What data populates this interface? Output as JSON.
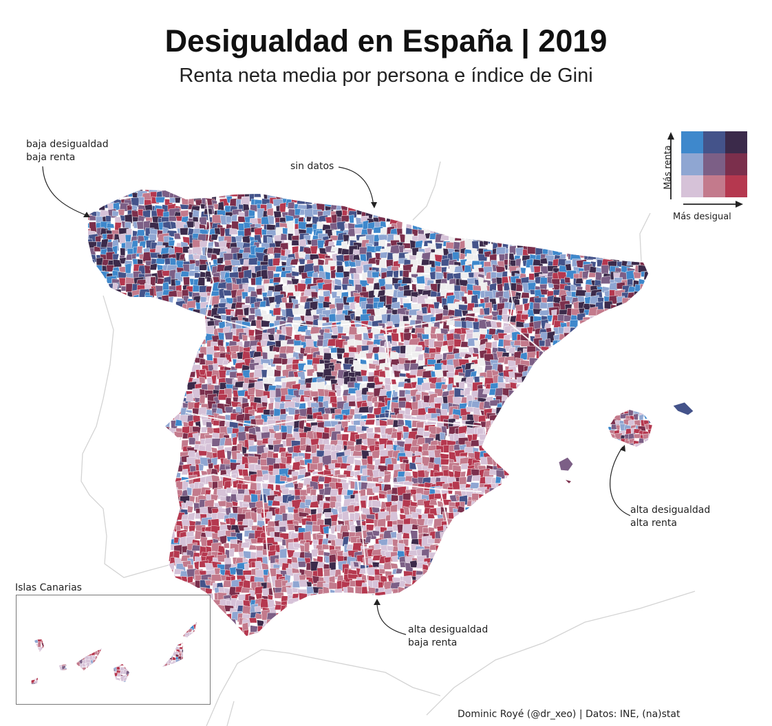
{
  "title": "Desigualdad en España | 2019",
  "subtitle": "Renta neta media por persona e índice de Gini",
  "annotations": {
    "top_left": [
      "baja desigualdad",
      "baja renta"
    ],
    "no_data": "sin datos",
    "right": [
      "alta desigualdad",
      "alta renta"
    ],
    "bottom": [
      "alta desigualdad",
      "baja renta"
    ]
  },
  "legend": {
    "y_label": "Más renta",
    "x_label": "Más desigual",
    "colors": [
      [
        "#3e88cc",
        "#44538a",
        "#3b2a4a"
      ],
      [
        "#8fa6d2",
        "#7c5f86",
        "#7b2f4c"
      ],
      [
        "#d6c2d8",
        "#c37a8c",
        "#b5384f"
      ]
    ]
  },
  "inset_label": "Islas Canarias",
  "credit": "Dominic Royé (@dr_xeo) | Datos: INE, (na)stat",
  "colors": {
    "no_data": "#efefef",
    "coast_outline": "#d0d0d0"
  }
}
